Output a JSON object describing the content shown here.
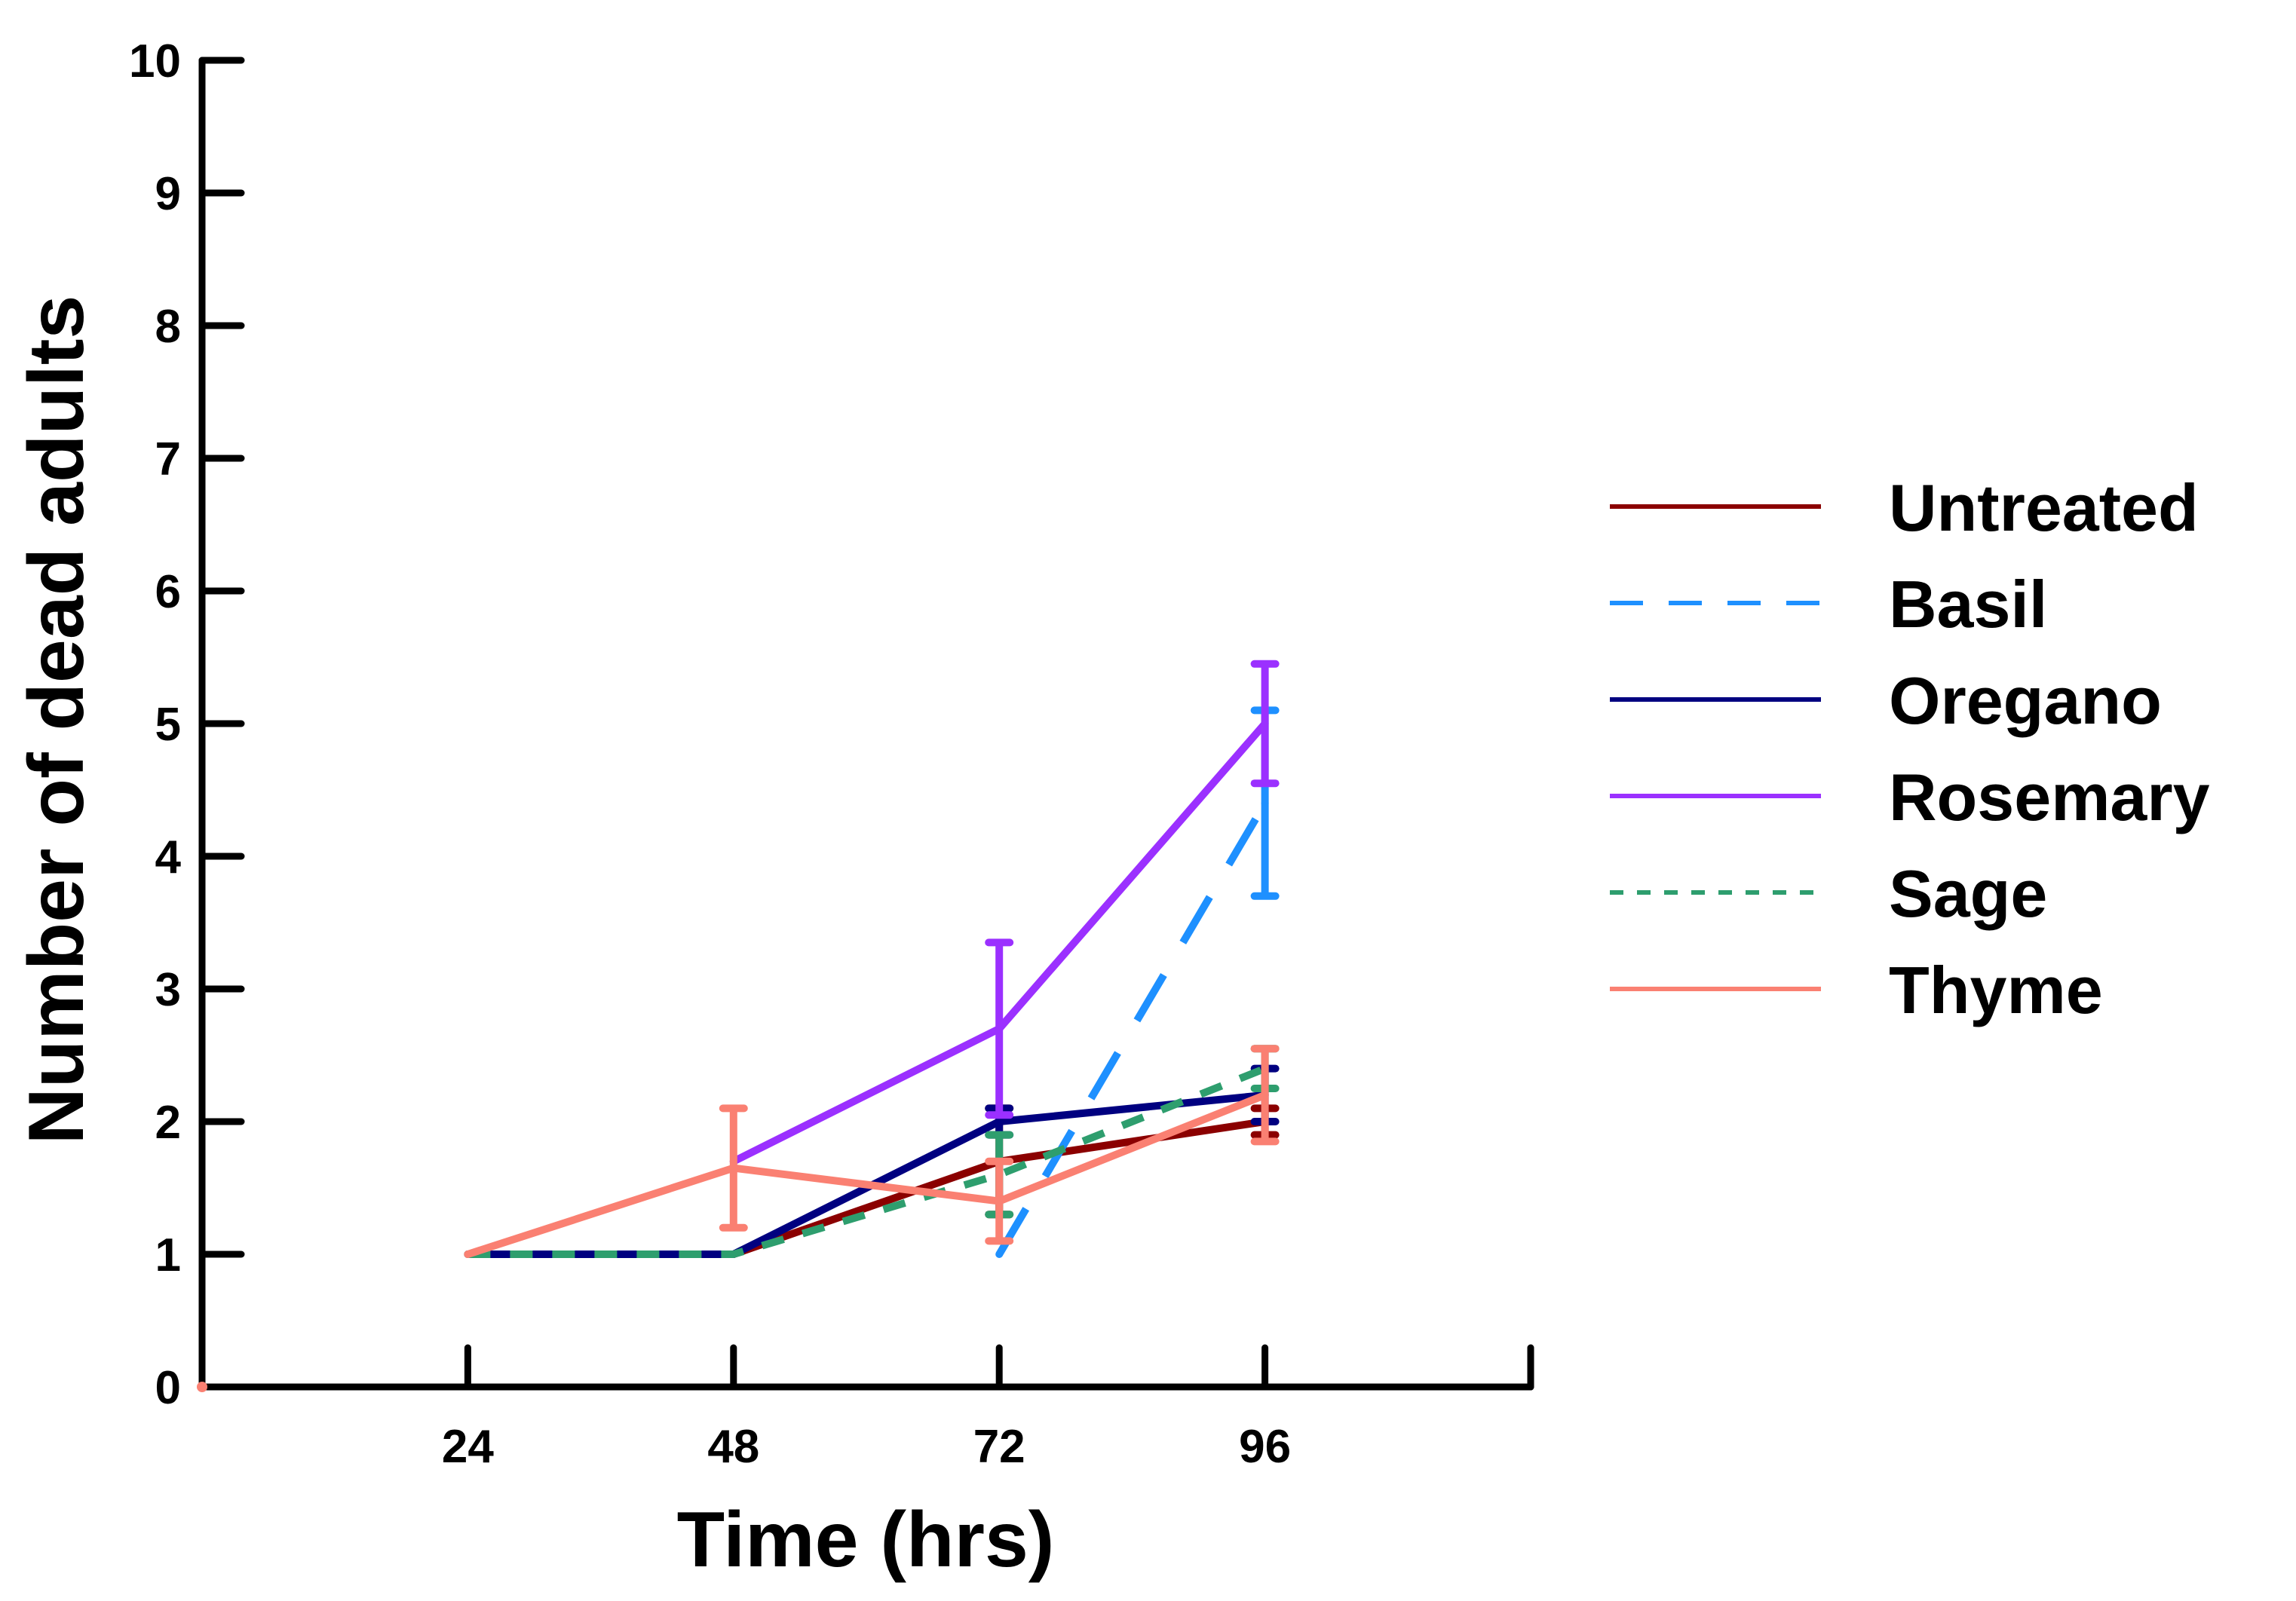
{
  "chart_data": {
    "type": "line",
    "title": "",
    "xlabel": "Time (hrs)",
    "ylabel": "Number of dead adults",
    "x": [
      24,
      48,
      72,
      96
    ],
    "x_tick_labels": [
      "24",
      "48",
      "72",
      "96"
    ],
    "xlim": [
      0,
      120
    ],
    "ylim": [
      0,
      10
    ],
    "y_ticks": [
      0,
      1,
      2,
      3,
      4,
      5,
      6,
      7,
      8,
      9,
      10
    ],
    "grid": false,
    "legend_position": "right",
    "series": [
      {
        "name": "Untreated",
        "color": "#8B0000",
        "dash": "solid",
        "values": [
          1,
          1,
          1.7,
          2.0
        ],
        "errors": [
          0,
          0,
          0.4,
          0.1
        ]
      },
      {
        "name": "Basil",
        "color": "#1E90FF",
        "dash": "long-dash",
        "values": [
          null,
          null,
          1.0,
          4.4
        ],
        "errors": [
          0,
          0,
          0,
          0.7
        ]
      },
      {
        "name": "Oregano",
        "color": "#000080",
        "dash": "solid",
        "values": [
          1,
          1,
          2.0,
          2.2
        ],
        "errors": [
          0,
          0,
          0.1,
          0.2
        ]
      },
      {
        "name": "Rosemary",
        "color": "#9B30FF",
        "dash": "solid",
        "values": [
          null,
          1.7,
          2.7,
          5.0
        ],
        "errors": [
          0,
          0,
          0.65,
          0.45
        ]
      },
      {
        "name": "Sage",
        "color": "#2E9E6E",
        "dash": "short-dash",
        "values": [
          1,
          1,
          1.6,
          2.4
        ],
        "errors": [
          0,
          0,
          0.3,
          0.15
        ]
      },
      {
        "name": "Thyme",
        "color": "#FA8072",
        "dash": "solid",
        "values": [
          1,
          1.65,
          1.4,
          2.2
        ],
        "errors": [
          0,
          0.45,
          0.3,
          0.35
        ]
      }
    ]
  }
}
